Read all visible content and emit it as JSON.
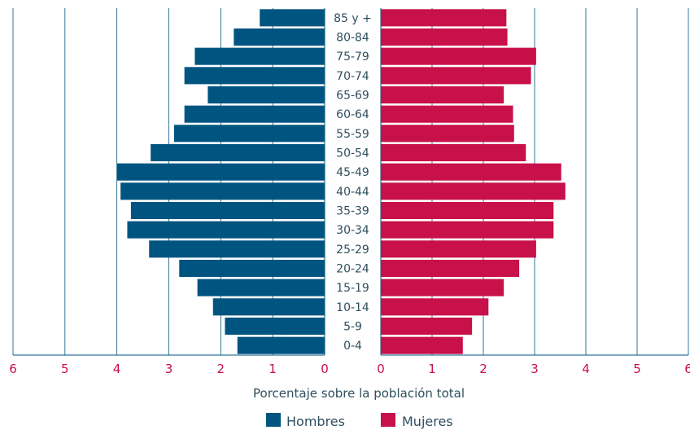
{
  "chart_data": {
    "type": "bar",
    "orientation": "horizontal-pyramid",
    "categories": [
      "85 y +",
      "80-84",
      "75-79",
      "70-74",
      "65-69",
      "60-64",
      "55-59",
      "50-54",
      "45-49",
      "40-44",
      "35-39",
      "30-34",
      "25-29",
      "20-24",
      "15-19",
      "10-14",
      "5-9",
      "0-4"
    ],
    "series": [
      {
        "name": "Hombres",
        "color": "#005580",
        "side": "left",
        "values": [
          1.25,
          1.75,
          2.5,
          2.7,
          2.25,
          2.7,
          2.9,
          3.35,
          4.0,
          3.93,
          3.73,
          3.8,
          3.38,
          2.8,
          2.45,
          2.15,
          1.92,
          1.68
        ]
      },
      {
        "name": "Mujeres",
        "color": "#c8104a",
        "side": "right",
        "values": [
          2.45,
          2.47,
          3.03,
          2.93,
          2.4,
          2.58,
          2.6,
          2.83,
          3.52,
          3.6,
          3.37,
          3.37,
          3.03,
          2.7,
          2.4,
          2.1,
          1.78,
          1.6
        ]
      }
    ],
    "xlabel": "Porcentaje sobre la población total",
    "left_ticks": [
      "6",
      "5",
      "4",
      "3",
      "2",
      "1",
      "0"
    ],
    "right_ticks": [
      "0",
      "1",
      "2",
      "3",
      "4",
      "5",
      "6"
    ],
    "xlim": [
      0,
      6
    ],
    "grid": true,
    "legend": "bottom-center",
    "tick_color": "#c8104a",
    "text_color": "#2f4f5f",
    "grid_color": "#005580"
  }
}
